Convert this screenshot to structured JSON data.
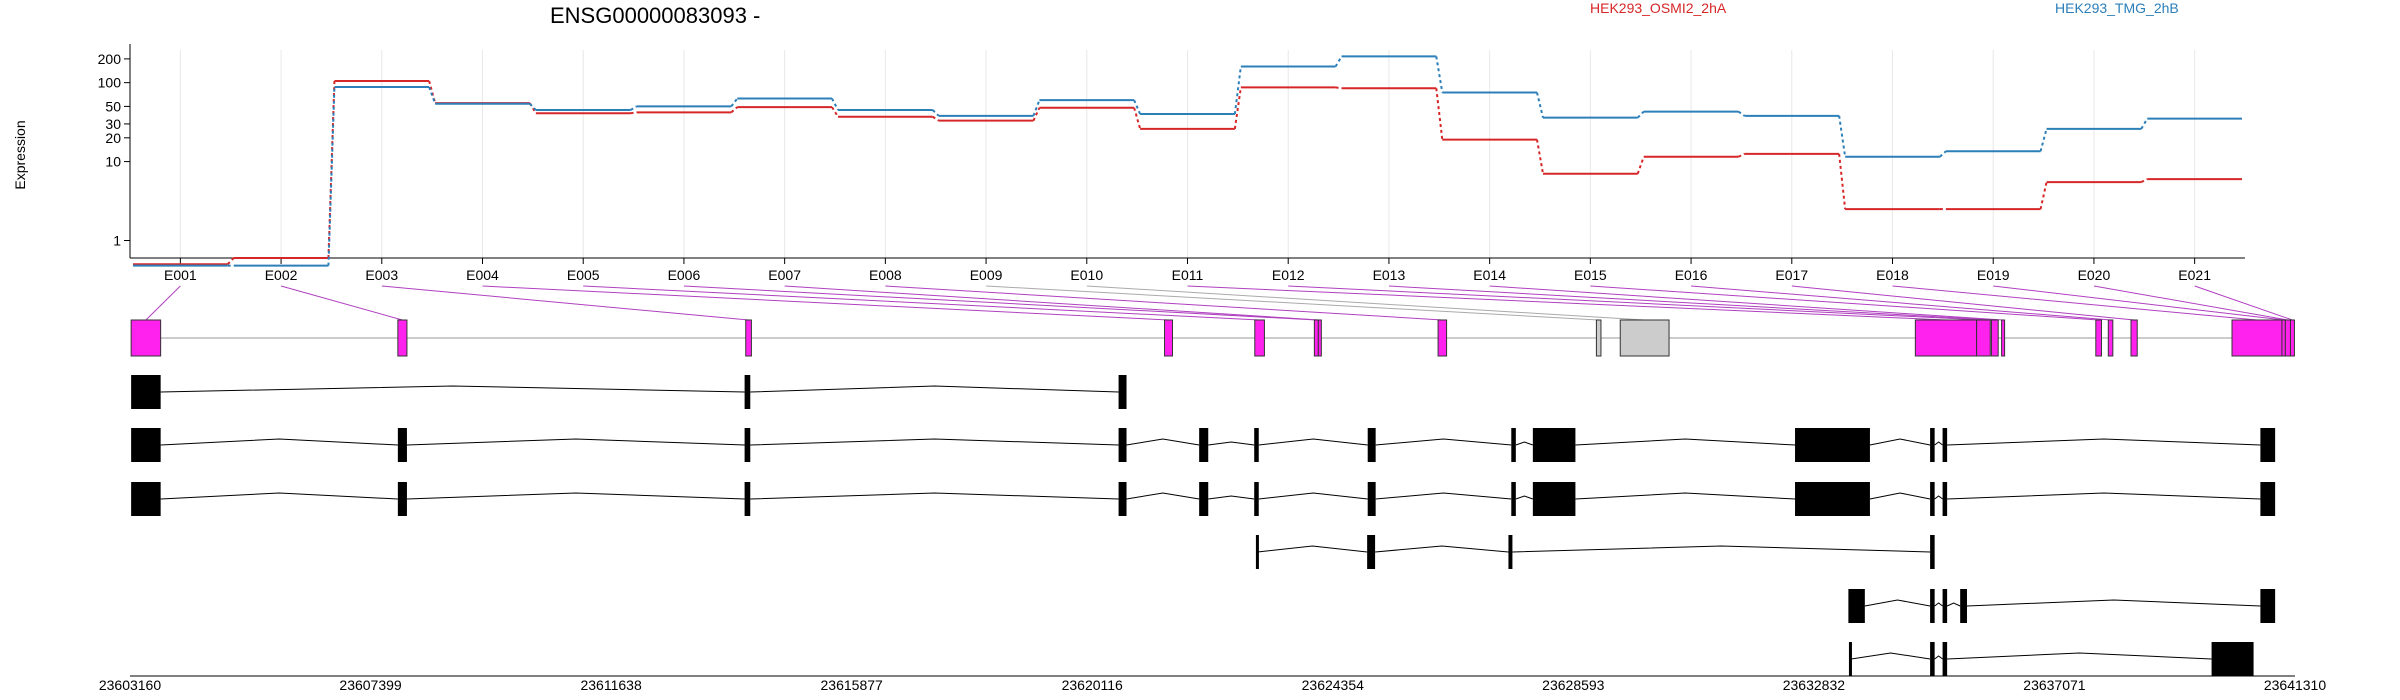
{
  "chart_data": {
    "type": "line",
    "title": "ENSG00000083093 -",
    "ylabel": "Expression",
    "y_scale": "log",
    "y_ticks": [
      1,
      10,
      20,
      30,
      50,
      100,
      200
    ],
    "categories": [
      "E001",
      "E002",
      "E003",
      "E004",
      "E005",
      "E006",
      "E007",
      "E008",
      "E009",
      "E010",
      "E011",
      "E012",
      "E013",
      "E014",
      "E015",
      "E016",
      "E017",
      "E018",
      "E019",
      "E020",
      "E021"
    ],
    "series": [
      {
        "name": "HEK293_OSMI2_2hA",
        "color": "#d62728",
        "values": [
          0.5,
          0.6,
          105,
          55,
          41,
          42,
          49,
          37,
          33,
          48,
          26,
          87,
          85,
          19,
          7,
          11.5,
          12.5,
          2.5,
          2.5,
          5.5,
          6
        ]
      },
      {
        "name": "HEK293_TMG_2hB",
        "color": "#2c7fb8",
        "values": [
          0.48,
          0.48,
          88,
          54,
          45,
          50,
          63,
          45,
          38,
          60,
          40,
          160,
          215,
          75,
          36,
          43,
          38,
          11.5,
          13.5,
          26,
          35
        ]
      }
    ],
    "legend_placement": "top-right",
    "grid": "vertical",
    "genomic_ticks": [
      "23603160",
      "23607399",
      "23611638",
      "23615877",
      "23620116",
      "23624354",
      "23628593",
      "23632832",
      "23637071",
      "23641310"
    ],
    "genomic_range": [
      23603160,
      23641310
    ],
    "exon_bins": [
      {
        "id": "E001",
        "start": 23603180,
        "end": 23603700
      },
      {
        "id": "E002",
        "start": 23607880,
        "end": 23608040
      },
      {
        "id": "E003",
        "start": 23614010,
        "end": 23614110
      },
      {
        "id": "E004",
        "start": 23621390,
        "end": 23621530
      },
      {
        "id": "E005",
        "start": 23622980,
        "end": 23623150
      },
      {
        "id": "E006",
        "start": 23624030,
        "end": 23624100
      },
      {
        "id": "E007",
        "start": 23624100,
        "end": 23624130
      },
      {
        "id": "E008",
        "start": 23626210,
        "end": 23626360
      },
      {
        "id": "E009",
        "start": 23629000,
        "end": 23629080
      },
      {
        "id": "E010",
        "start": 23629420,
        "end": 23630280
      },
      {
        "id": "E011",
        "start": 23634620,
        "end": 23635700
      },
      {
        "id": "E012",
        "start": 23635700,
        "end": 23635940
      },
      {
        "id": "E013",
        "start": 23635960,
        "end": 23636080
      },
      {
        "id": "E014",
        "start": 23636140,
        "end": 23636180
      },
      {
        "id": "E015",
        "start": 23637800,
        "end": 23637900
      },
      {
        "id": "E016",
        "start": 23638020,
        "end": 23638100
      },
      {
        "id": "E017",
        "start": 23638420,
        "end": 23638530
      },
      {
        "id": "E018",
        "start": 23640200,
        "end": 23641080
      },
      {
        "id": "E019",
        "start": 23641080,
        "end": 23641140
      },
      {
        "id": "E020",
        "start": 23641140,
        "end": 23641230
      },
      {
        "id": "E021",
        "start": 23641230,
        "end": 23641300
      }
    ],
    "bin_colors": {
      "expressed": "#ff22ee",
      "not_expressed": "#cccccc"
    },
    "grey_bins": [
      "E009",
      "E010"
    ],
    "transcripts": [
      {
        "exons": [
          [
            23603180,
            23603700
          ],
          [
            23613990,
            23614090
          ],
          [
            23620580,
            23620720
          ]
        ]
      },
      {
        "exons": [
          [
            23603180,
            23603700
          ],
          [
            23607880,
            23608040
          ],
          [
            23613990,
            23614090
          ],
          [
            23620580,
            23620720
          ],
          [
            23622000,
            23622160
          ],
          [
            23622970,
            23623050
          ],
          [
            23624970,
            23625110
          ],
          [
            23627500,
            23627580
          ],
          [
            23627880,
            23628630
          ],
          [
            23632500,
            23633820
          ],
          [
            23634880,
            23634960
          ],
          [
            23635100,
            23635180
          ],
          [
            23640700,
            23640960
          ]
        ]
      },
      {
        "exons": [
          [
            23603180,
            23603700
          ],
          [
            23607880,
            23608040
          ],
          [
            23613990,
            23614090
          ],
          [
            23620580,
            23620720
          ],
          [
            23622000,
            23622160
          ],
          [
            23622970,
            23623050
          ],
          [
            23624970,
            23625110
          ],
          [
            23627500,
            23627580
          ],
          [
            23627880,
            23628630
          ],
          [
            23632500,
            23633820
          ],
          [
            23634880,
            23634960
          ],
          [
            23635100,
            23635180
          ],
          [
            23640700,
            23640960
          ]
        ]
      },
      {
        "exons": [
          [
            23623000,
            23623030
          ],
          [
            23624960,
            23625100
          ],
          [
            23627450,
            23627520
          ],
          [
            23634880,
            23634960
          ]
        ]
      },
      {
        "exons": [
          [
            23633440,
            23633730
          ],
          [
            23634880,
            23634960
          ],
          [
            23635100,
            23635180
          ],
          [
            23635410,
            23635530
          ],
          [
            23640700,
            23640960
          ]
        ]
      },
      {
        "exons": [
          [
            23633450,
            23633490
          ],
          [
            23634880,
            23634960
          ],
          [
            23635100,
            23635180
          ],
          [
            23639840,
            23640580
          ]
        ]
      }
    ]
  }
}
